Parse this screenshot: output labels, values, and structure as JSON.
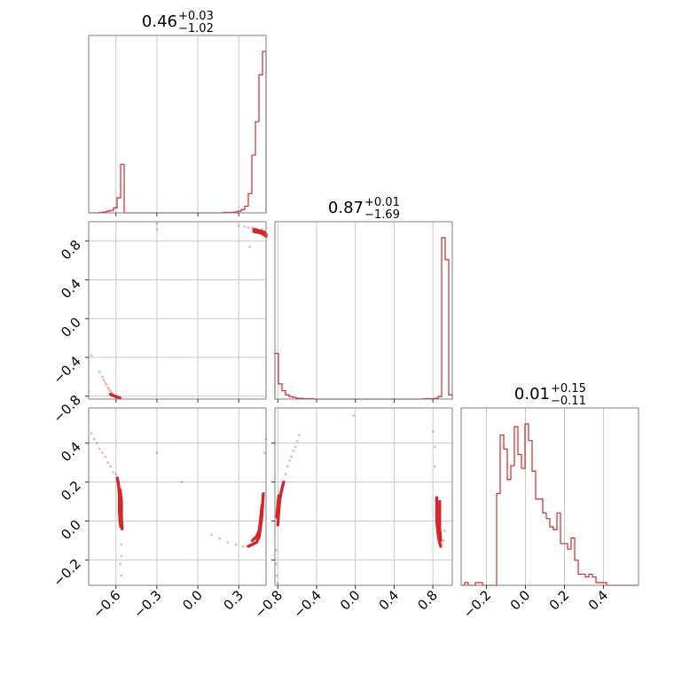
{
  "chart_data": {
    "type": "corner",
    "color": "#d62728",
    "grid": true,
    "parameters": [
      {
        "median": "0.46",
        "upper": "+0.03",
        "lower": "−1.02",
        "range": [
          -0.8,
          0.5
        ],
        "ticks": [
          -0.6,
          -0.3,
          0.0,
          0.3
        ],
        "tick_labels": [
          "−0.6",
          "−0.3",
          "0.0",
          "0.3"
        ]
      },
      {
        "median": "0.87",
        "upper": "+0.01",
        "lower": "−1.69",
        "range": [
          -0.83,
          1.0
        ],
        "ticks": [
          -0.8,
          -0.4,
          0.0,
          0.4,
          0.8
        ],
        "tick_labels": [
          "−0.8",
          "−0.4",
          "0.0",
          "0.4",
          "0.8"
        ]
      },
      {
        "median": "0.01",
        "upper": "+0.15",
        "lower": "−0.11",
        "range": [
          -0.33,
          0.58
        ],
        "ticks": [
          -0.2,
          0.0,
          0.2,
          0.4
        ],
        "tick_labels": [
          "−0.2",
          "0.0",
          "0.2",
          "0.4"
        ]
      }
    ],
    "diagonal": [
      {
        "edges_start": -0.8,
        "bin_width": 0.026,
        "counts": [
          0,
          0,
          0,
          0.5,
          1,
          2,
          3,
          6,
          18,
          58,
          0,
          0,
          0,
          0,
          0,
          0,
          0,
          0,
          0,
          0,
          0,
          0,
          0,
          0,
          0,
          0,
          0,
          0,
          0,
          0,
          0,
          0,
          0,
          0,
          0,
          0,
          0,
          0,
          0.5,
          0.5,
          0.5,
          1,
          2,
          4,
          8,
          23,
          69,
          109,
          165,
          193
        ]
      },
      {
        "edges_start": -0.83,
        "bin_width": 0.0366,
        "counts": [
          54,
          18,
          10,
          5,
          3,
          2,
          1,
          1,
          0.5,
          0.5,
          0.5,
          0,
          0,
          0,
          0,
          0,
          0,
          0,
          0,
          0,
          0,
          0,
          0,
          0,
          0,
          0,
          0,
          0,
          0,
          0,
          0,
          0,
          0,
          0,
          0,
          0,
          0,
          0,
          0,
          0,
          0,
          0,
          0.5,
          0.5,
          0.5,
          1,
          3,
          191,
          165,
          5
        ]
      },
      {
        "edges_start": -0.33,
        "bin_width": 0.0182,
        "counts": [
          0,
          1,
          0,
          0,
          1,
          1,
          0,
          0,
          0,
          0,
          33,
          54,
          49,
          38,
          43,
          57,
          47,
          42,
          58,
          52,
          41,
          31,
          31,
          26,
          24,
          21,
          20,
          26,
          15,
          15,
          13,
          17,
          9,
          4,
          4,
          3,
          4,
          3,
          1,
          1,
          1,
          0,
          0,
          0,
          0,
          0,
          0,
          0,
          0,
          0
        ]
      }
    ],
    "pairs": [
      {
        "x": 0,
        "y": 1,
        "contours": [
          [
            [
              0.41,
              0.92
            ],
            [
              0.44,
              0.91
            ],
            [
              0.47,
              0.9
            ],
            [
              0.49,
              0.89
            ],
            [
              0.5,
              0.87
            ]
          ],
          [
            [
              0.41,
              0.9
            ],
            [
              0.44,
              0.89
            ],
            [
              0.47,
              0.88
            ],
            [
              0.5,
              0.85
            ]
          ],
          [
            [
              -0.64,
              -0.78
            ],
            [
              -0.61,
              -0.8
            ],
            [
              -0.59,
              -0.81
            ],
            [
              -0.57,
              -0.82
            ]
          ]
        ],
        "points": [
          [
            -0.72,
            -0.55
          ],
          [
            -0.7,
            -0.6
          ],
          [
            -0.69,
            -0.63
          ],
          [
            -0.68,
            -0.66
          ],
          [
            -0.67,
            -0.68
          ],
          [
            -0.66,
            -0.71
          ],
          [
            -0.65,
            -0.73
          ],
          [
            -0.64,
            -0.75
          ],
          [
            -0.63,
            -0.77
          ],
          [
            -0.6,
            -0.79
          ],
          [
            -0.78,
            -0.38
          ],
          [
            0.3,
            0.96
          ],
          [
            0.34,
            0.95
          ],
          [
            0.37,
            0.94
          ],
          [
            0.4,
            0.94
          ],
          [
            0.43,
            0.93
          ],
          [
            0.47,
            0.92
          ],
          [
            -0.3,
            0.92
          ],
          [
            0.38,
            0.74
          ],
          [
            -0.3,
            0.98
          ]
        ]
      },
      {
        "x": 0,
        "y": 2,
        "contours": [
          [
            [
              -0.59,
              0.22
            ],
            [
              -0.58,
              0.18
            ],
            [
              -0.575,
              0.13
            ],
            [
              -0.575,
              0.06
            ],
            [
              -0.57,
              0.0
            ],
            [
              -0.565,
              -0.03
            ]
          ],
          [
            [
              -0.57,
              0.16
            ],
            [
              -0.56,
              0.1
            ],
            [
              -0.56,
              0.02
            ],
            [
              -0.555,
              -0.04
            ]
          ],
          [
            [
              0.37,
              -0.13
            ],
            [
              0.4,
              -0.12
            ],
            [
              0.43,
              -0.11
            ],
            [
              0.45,
              -0.08
            ],
            [
              0.46,
              -0.03
            ],
            [
              0.47,
              0.03
            ],
            [
              0.475,
              0.09
            ],
            [
              0.48,
              0.14
            ]
          ],
          [
            [
              0.4,
              -0.1
            ],
            [
              0.43,
              -0.08
            ],
            [
              0.45,
              -0.05
            ],
            [
              0.46,
              0.01
            ],
            [
              0.47,
              0.08
            ]
          ]
        ],
        "points": [
          [
            -0.78,
            0.45
          ],
          [
            -0.76,
            0.42
          ],
          [
            -0.74,
            0.4
          ],
          [
            -0.72,
            0.37
          ],
          [
            -0.7,
            0.35
          ],
          [
            -0.68,
            0.33
          ],
          [
            -0.66,
            0.3
          ],
          [
            -0.64,
            0.28
          ],
          [
            -0.62,
            0.25
          ],
          [
            -0.6,
            0.24
          ],
          [
            -0.56,
            -0.12
          ],
          [
            -0.56,
            -0.18
          ],
          [
            -0.57,
            -0.22
          ],
          [
            -0.56,
            -0.28
          ],
          [
            0.1,
            -0.07
          ],
          [
            0.16,
            -0.09
          ],
          [
            0.22,
            -0.11
          ],
          [
            0.28,
            -0.12
          ],
          [
            0.33,
            -0.13
          ],
          [
            -0.3,
            0.35
          ],
          [
            -0.12,
            0.2
          ],
          [
            0.49,
            0.35
          ],
          [
            0.5,
            0.42
          ]
        ]
      },
      {
        "x": 1,
        "y": 2,
        "contours": [
          [
            [
              -0.8,
              -0.02
            ],
            [
              -0.79,
              0.05
            ],
            [
              -0.78,
              0.11
            ],
            [
              -0.76,
              0.16
            ],
            [
              -0.74,
              0.2
            ]
          ],
          [
            [
              -0.81,
              0.02
            ],
            [
              -0.8,
              0.08
            ],
            [
              -0.79,
              0.13
            ]
          ],
          [
            [
              0.84,
              0.12
            ],
            [
              0.84,
              0.06
            ],
            [
              0.84,
              0.0
            ],
            [
              0.85,
              -0.05
            ],
            [
              0.86,
              -0.09
            ],
            [
              0.88,
              -0.13
            ]
          ],
          [
            [
              0.87,
              0.1
            ],
            [
              0.87,
              0.03
            ],
            [
              0.87,
              -0.04
            ],
            [
              0.88,
              -0.1
            ]
          ]
        ],
        "points": [
          [
            -0.72,
            0.24
          ],
          [
            -0.7,
            0.28
          ],
          [
            -0.68,
            0.31
          ],
          [
            -0.66,
            0.33
          ],
          [
            -0.64,
            0.36
          ],
          [
            -0.62,
            0.38
          ],
          [
            -0.6,
            0.41
          ],
          [
            -0.58,
            0.44
          ],
          [
            -0.82,
            -0.15
          ],
          [
            -0.82,
            -0.22
          ],
          [
            -0.81,
            -0.28
          ],
          [
            -0.8,
            -0.32
          ],
          [
            0.82,
            0.28
          ],
          [
            0.82,
            0.38
          ],
          [
            0.8,
            0.46
          ],
          [
            0.91,
            -0.1
          ],
          [
            0.92,
            -0.05
          ],
          [
            -0.02,
            0.54
          ]
        ]
      }
    ]
  }
}
